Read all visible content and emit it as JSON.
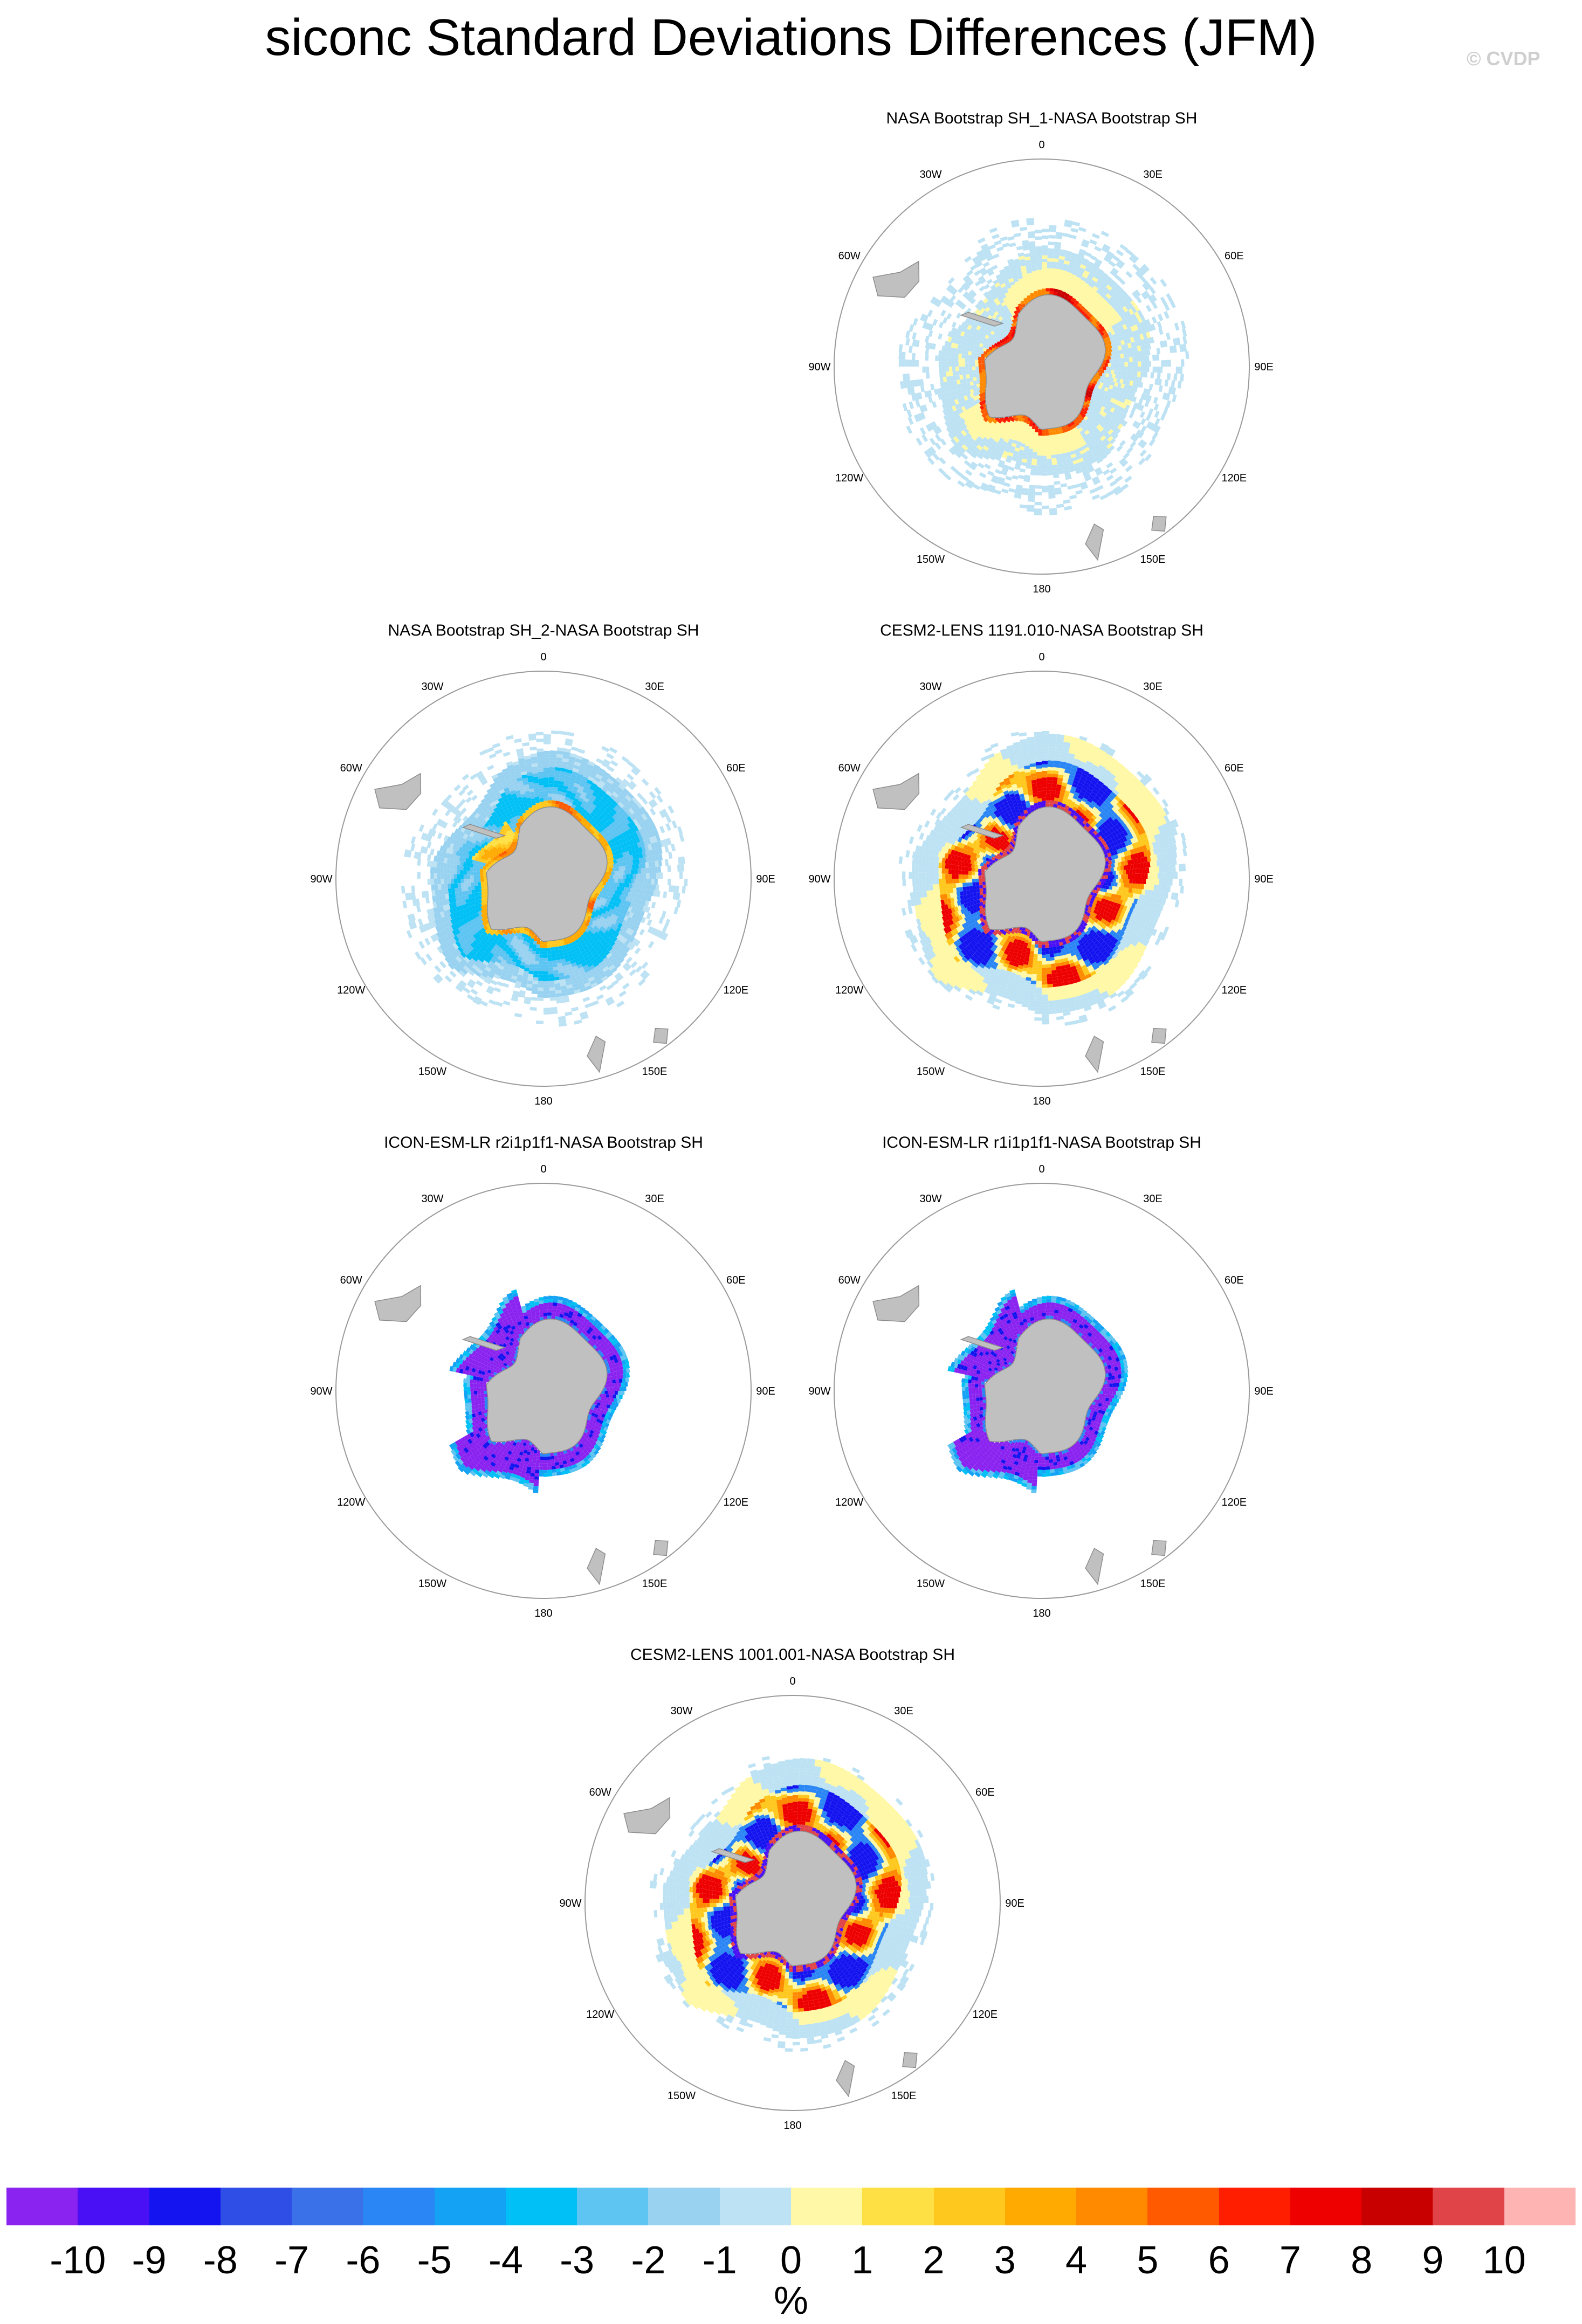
{
  "title": "siconc Standard Deviations Differences (JFM)",
  "watermark": "© CVDP",
  "longitude_labels": [
    "0",
    "30E",
    "60E",
    "90E",
    "120E",
    "150E",
    "180",
    "150W",
    "120W",
    "90W",
    "60W",
    "30W"
  ],
  "panels": [
    {
      "title": "NASA Bootstrap SH_1-NASA Bootstrap SH",
      "pattern": "obs1"
    },
    {
      "title": "NASA Bootstrap SH_2-NASA Bootstrap SH",
      "pattern": "obs2"
    },
    {
      "title": "CESM2-LENS 1191.010-NASA Bootstrap SH",
      "pattern": "cesm"
    },
    {
      "title": "ICON-ESM-LR r2i1p1f1-NASA Bootstrap SH",
      "pattern": "icon"
    },
    {
      "title": "ICON-ESM-LR r1i1p1f1-NASA Bootstrap SH",
      "pattern": "icon"
    },
    {
      "title": "CESM2-LENS 1001.001-NASA Bootstrap SH",
      "pattern": "cesm"
    }
  ],
  "colorbar": {
    "unit": "%",
    "labels": [
      "-10",
      "-9",
      "-8",
      "-7",
      "-6",
      "-5",
      "-4",
      "-3",
      "-2",
      "-1",
      "0",
      "1",
      "2",
      "3",
      "4",
      "5",
      "6",
      "7",
      "8",
      "9",
      "10"
    ],
    "colors": [
      "#8a22f0",
      "#4a10f5",
      "#1414f0",
      "#2e4ee6",
      "#3a70e8",
      "#2b86f5",
      "#14a2f5",
      "#00c0f5",
      "#5ec4f2",
      "#98d2f0",
      "#bde2f3",
      "#fff8a6",
      "#ffe044",
      "#ffc81e",
      "#ffaa00",
      "#ff8a00",
      "#ff5a00",
      "#ff1e00",
      "#ee0000",
      "#c80000",
      "#e04448",
      "#ffb4b4"
    ]
  },
  "land_color": "#c0c0c0"
}
